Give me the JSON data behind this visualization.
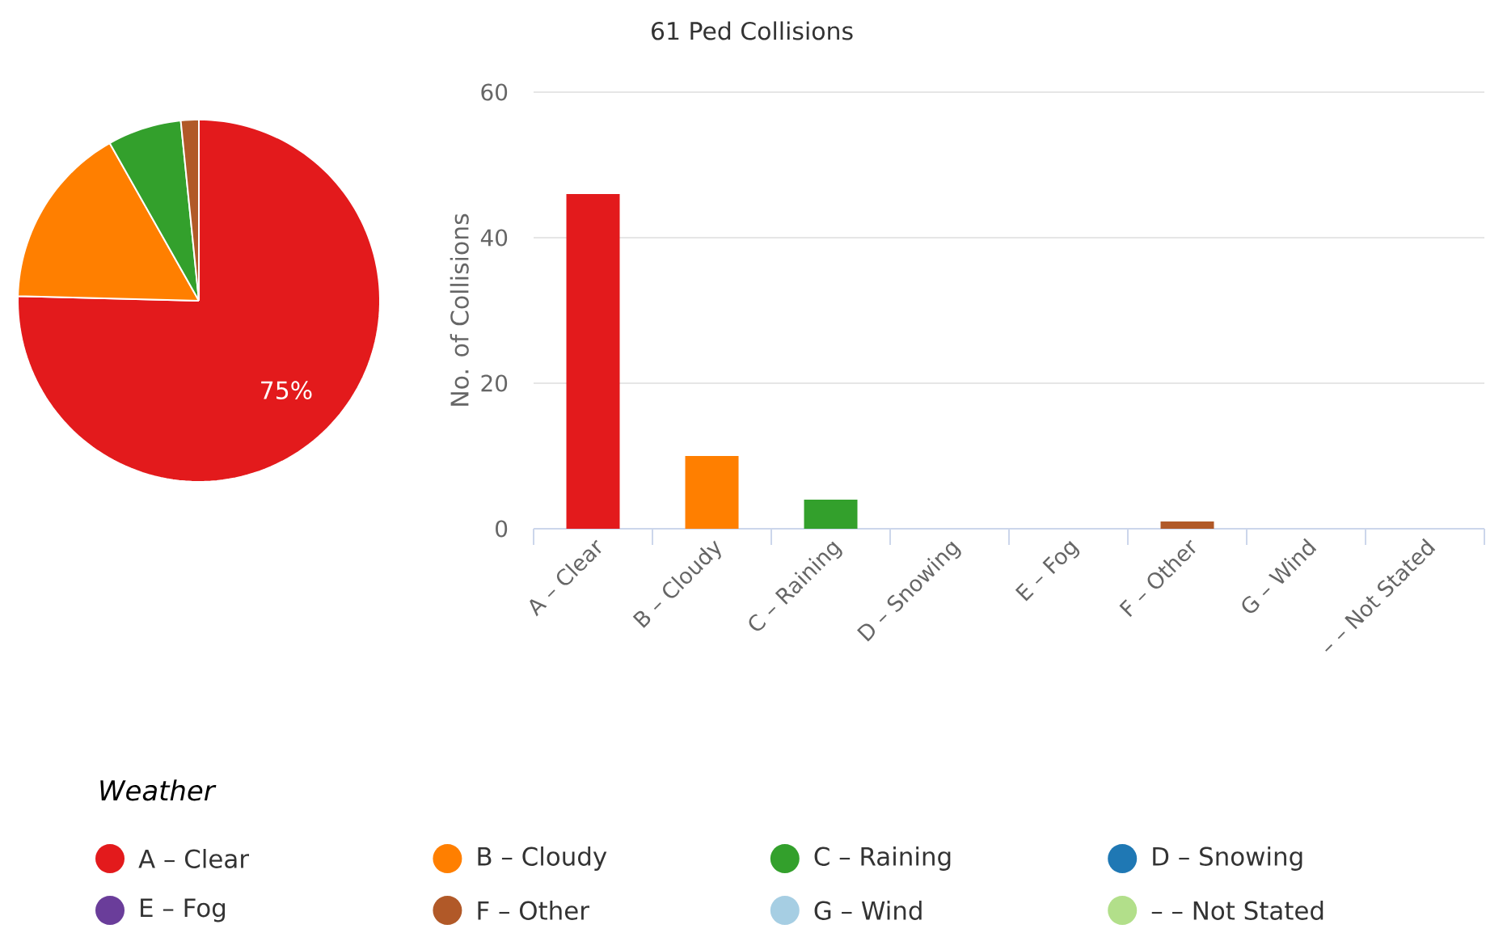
{
  "chart_data": [
    {
      "type": "pie",
      "categories": [
        "A – Clear",
        "B – Cloudy",
        "C – Raining",
        "D – Snowing",
        "E – Fog",
        "F – Other",
        "G – Wind",
        "– – Not Stated"
      ],
      "values": [
        75.4,
        16.4,
        6.6,
        0,
        0,
        1.6,
        0,
        0
      ],
      "colors": [
        "#e31a1c",
        "#ff7f00",
        "#33a02c",
        "#1f78b4",
        "#6a3d9a",
        "#b15928",
        "#a6cee3",
        "#b2df8a"
      ],
      "value_labels": [
        "75%",
        null,
        null,
        null,
        null,
        null,
        null,
        null
      ],
      "legend": "bottom",
      "legend_title": "Weather"
    },
    {
      "type": "bar",
      "title": "61 Ped Collisions",
      "ylabel": "No. of Collisions",
      "categories": [
        "A – Clear",
        "B – Cloudy",
        "C – Raining",
        "D – Snowing",
        "E – Fog",
        "F – Other",
        "G – Wind",
        "– – Not Stated"
      ],
      "values": [
        46,
        10,
        4,
        0,
        0,
        1,
        0,
        0
      ],
      "colors": [
        "#e31a1c",
        "#ff7f00",
        "#33a02c",
        "#1f78b4",
        "#6a3d9a",
        "#b15928",
        "#a6cee3",
        "#b2df8a"
      ],
      "ylim": [
        0,
        60
      ],
      "yticks": [
        0,
        20,
        40,
        60
      ],
      "grid": "y"
    }
  ]
}
